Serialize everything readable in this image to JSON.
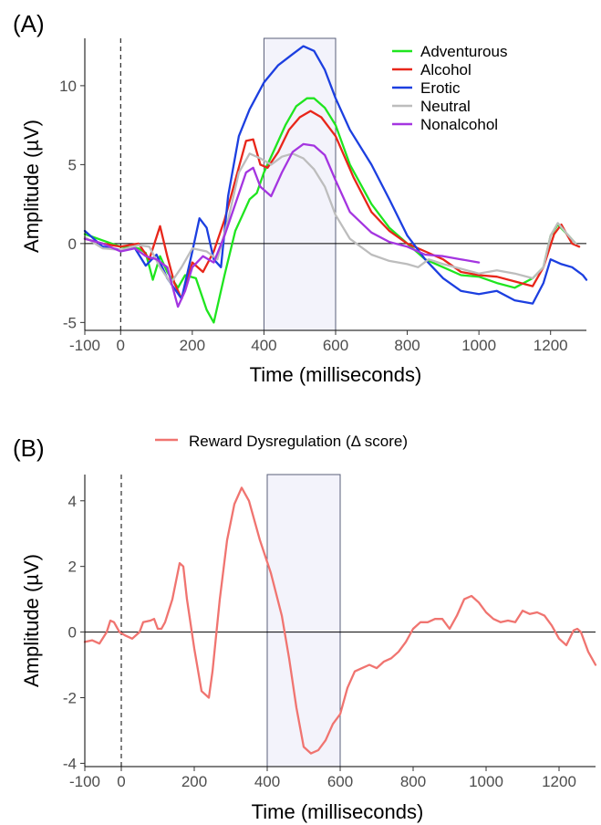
{
  "chart_data": [
    {
      "panel_label": "(A)",
      "type": "line",
      "xlabel": "Time (milliseconds)",
      "ylabel": "Amplitude (µV)",
      "xlim": [
        -100,
        1300
      ],
      "ylim": [
        -5.5,
        13
      ],
      "xticks": [
        -100,
        0,
        200,
        400,
        600,
        800,
        1000,
        1200
      ],
      "yticks": [
        -5,
        0,
        5,
        10
      ],
      "zero_line": true,
      "stimulus_onset_dashed": 0,
      "shaded_window": [
        400,
        600
      ],
      "legend_position": "top-right",
      "series": [
        {
          "name": "Adventurous",
          "color": "#1fe51f",
          "points": [
            [
              -100,
              0.6
            ],
            [
              -50,
              0.2
            ],
            [
              0,
              -0.2
            ],
            [
              50,
              -0.3
            ],
            [
              70,
              -0.6
            ],
            [
              90,
              -2.3
            ],
            [
              110,
              -0.8
            ],
            [
              130,
              -1.8
            ],
            [
              160,
              -2.8
            ],
            [
              180,
              -2.0
            ],
            [
              210,
              -2.2
            ],
            [
              240,
              -4.2
            ],
            [
              260,
              -5.0
            ],
            [
              290,
              -2.0
            ],
            [
              320,
              0.8
            ],
            [
              340,
              1.8
            ],
            [
              360,
              2.8
            ],
            [
              380,
              3.2
            ],
            [
              400,
              4.5
            ],
            [
              430,
              6.0
            ],
            [
              460,
              7.5
            ],
            [
              490,
              8.7
            ],
            [
              520,
              9.2
            ],
            [
              540,
              9.2
            ],
            [
              570,
              8.6
            ],
            [
              600,
              7.5
            ],
            [
              640,
              5.0
            ],
            [
              700,
              2.5
            ],
            [
              750,
              1.0
            ],
            [
              800,
              0.0
            ],
            [
              850,
              -1.0
            ],
            [
              900,
              -1.5
            ],
            [
              950,
              -2.0
            ],
            [
              1000,
              -2.1
            ],
            [
              1050,
              -2.5
            ],
            [
              1100,
              -2.8
            ],
            [
              1150,
              -2.2
            ],
            [
              1180,
              -1.5
            ],
            [
              1200,
              0.5
            ],
            [
              1220,
              1.2
            ],
            [
              1250,
              0.5
            ],
            [
              1270,
              0.0
            ]
          ]
        },
        {
          "name": "Alcohol",
          "color": "#e8261a",
          "points": [
            [
              -100,
              0.3
            ],
            [
              -50,
              0.0
            ],
            [
              0,
              -0.2
            ],
            [
              50,
              0.0
            ],
            [
              80,
              -1.0
            ],
            [
              110,
              1.1
            ],
            [
              130,
              -0.8
            ],
            [
              150,
              -2.5
            ],
            [
              170,
              -3.5
            ],
            [
              200,
              -1.2
            ],
            [
              230,
              -1.8
            ],
            [
              260,
              -0.5
            ],
            [
              290,
              1.5
            ],
            [
              320,
              4.0
            ],
            [
              350,
              6.5
            ],
            [
              370,
              6.6
            ],
            [
              390,
              5.0
            ],
            [
              410,
              4.8
            ],
            [
              440,
              5.8
            ],
            [
              470,
              7.2
            ],
            [
              500,
              8.0
            ],
            [
              530,
              8.4
            ],
            [
              560,
              8.0
            ],
            [
              600,
              6.8
            ],
            [
              650,
              4.2
            ],
            [
              700,
              2.0
            ],
            [
              750,
              0.8
            ],
            [
              800,
              0.0
            ],
            [
              850,
              -0.5
            ],
            [
              900,
              -1.0
            ],
            [
              950,
              -1.8
            ],
            [
              1000,
              -2.0
            ],
            [
              1050,
              -2.1
            ],
            [
              1100,
              -2.4
            ],
            [
              1150,
              -2.7
            ],
            [
              1180,
              -1.5
            ],
            [
              1210,
              0.6
            ],
            [
              1230,
              1.2
            ],
            [
              1260,
              0.0
            ],
            [
              1280,
              -0.2
            ]
          ]
        },
        {
          "name": "Erotic",
          "color": "#1c3fe0",
          "points": [
            [
              -100,
              0.8
            ],
            [
              -50,
              -0.2
            ],
            [
              0,
              -0.4
            ],
            [
              40,
              -0.3
            ],
            [
              70,
              -1.4
            ],
            [
              100,
              -0.7
            ],
            [
              130,
              -2.2
            ],
            [
              170,
              -3.5
            ],
            [
              200,
              -0.5
            ],
            [
              220,
              1.6
            ],
            [
              240,
              1.0
            ],
            [
              260,
              -1.0
            ],
            [
              280,
              -1.5
            ],
            [
              300,
              3.0
            ],
            [
              330,
              6.8
            ],
            [
              360,
              8.5
            ],
            [
              400,
              10.2
            ],
            [
              440,
              11.3
            ],
            [
              480,
              12.0
            ],
            [
              510,
              12.5
            ],
            [
              540,
              12.2
            ],
            [
              570,
              11.0
            ],
            [
              600,
              9.2
            ],
            [
              640,
              7.2
            ],
            [
              700,
              5.0
            ],
            [
              750,
              2.8
            ],
            [
              800,
              0.5
            ],
            [
              850,
              -1.0
            ],
            [
              900,
              -2.2
            ],
            [
              950,
              -3.0
            ],
            [
              1000,
              -3.2
            ],
            [
              1050,
              -3.0
            ],
            [
              1100,
              -3.6
            ],
            [
              1150,
              -3.8
            ],
            [
              1180,
              -2.5
            ],
            [
              1200,
              -1.0
            ],
            [
              1230,
              -1.3
            ],
            [
              1260,
              -1.5
            ],
            [
              1290,
              -2.0
            ],
            [
              1300,
              -2.3
            ]
          ]
        },
        {
          "name": "Neutral",
          "color": "#bdbdbd",
          "points": [
            [
              -100,
              0.4
            ],
            [
              -50,
              -0.3
            ],
            [
              0,
              -0.4
            ],
            [
              50,
              -0.1
            ],
            [
              80,
              -0.2
            ],
            [
              110,
              -1.5
            ],
            [
              140,
              -2.5
            ],
            [
              170,
              -1.5
            ],
            [
              200,
              -0.3
            ],
            [
              240,
              -0.5
            ],
            [
              270,
              -1.0
            ],
            [
              300,
              1.5
            ],
            [
              330,
              4.5
            ],
            [
              360,
              5.7
            ],
            [
              390,
              5.4
            ],
            [
              420,
              5.0
            ],
            [
              450,
              5.5
            ],
            [
              480,
              5.7
            ],
            [
              510,
              5.4
            ],
            [
              540,
              4.7
            ],
            [
              570,
              3.6
            ],
            [
              600,
              1.8
            ],
            [
              640,
              0.3
            ],
            [
              700,
              -0.7
            ],
            [
              750,
              -1.1
            ],
            [
              800,
              -1.3
            ],
            [
              830,
              -1.5
            ],
            [
              860,
              -1.0
            ],
            [
              900,
              -1.3
            ],
            [
              950,
              -1.6
            ],
            [
              1000,
              -1.9
            ],
            [
              1050,
              -1.7
            ],
            [
              1100,
              -1.9
            ],
            [
              1150,
              -2.2
            ],
            [
              1180,
              -1.5
            ],
            [
              1200,
              0.5
            ],
            [
              1220,
              1.3
            ],
            [
              1250,
              0.5
            ],
            [
              1270,
              0.0
            ]
          ]
        },
        {
          "name": "Nonalcohol",
          "color": "#a435e0",
          "points": [
            [
              -100,
              0.3
            ],
            [
              -50,
              0.0
            ],
            [
              0,
              -0.5
            ],
            [
              40,
              -0.3
            ],
            [
              70,
              -0.8
            ],
            [
              100,
              -1.0
            ],
            [
              130,
              -1.5
            ],
            [
              160,
              -4.0
            ],
            [
              180,
              -3.0
            ],
            [
              200,
              -1.5
            ],
            [
              230,
              -0.8
            ],
            [
              260,
              -1.2
            ],
            [
              290,
              0.5
            ],
            [
              320,
              2.5
            ],
            [
              350,
              4.5
            ],
            [
              370,
              4.8
            ],
            [
              390,
              3.6
            ],
            [
              420,
              3.0
            ],
            [
              450,
              4.5
            ],
            [
              480,
              5.8
            ],
            [
              510,
              6.3
            ],
            [
              540,
              6.2
            ],
            [
              570,
              5.6
            ],
            [
              600,
              4.0
            ],
            [
              640,
              2.0
            ],
            [
              700,
              0.7
            ],
            [
              750,
              0.1
            ],
            [
              800,
              -0.2
            ],
            [
              850,
              -0.7
            ],
            [
              900,
              -0.8
            ],
            [
              950,
              -1.0
            ],
            [
              1000,
              -1.2
            ]
          ]
        }
      ]
    },
    {
      "panel_label": "(B)",
      "type": "line",
      "xlabel": "Time (milliseconds)",
      "ylabel": "Amplitude (µV)",
      "xlim": [
        -100,
        1300
      ],
      "ylim": [
        -4.1,
        4.8
      ],
      "xticks": [
        -100,
        0,
        200,
        400,
        600,
        800,
        1000,
        1200
      ],
      "yticks": [
        -4,
        -2,
        0,
        2,
        4
      ],
      "zero_line": true,
      "stimulus_onset_dashed": 0,
      "shaded_window": [
        400,
        600
      ],
      "legend_position": "top",
      "series": [
        {
          "name": "Reward Dysregulation (Δ score)",
          "color": "#f07470",
          "points": [
            [
              -100,
              -0.3
            ],
            [
              -80,
              -0.25
            ],
            [
              -60,
              -0.35
            ],
            [
              -40,
              0.0
            ],
            [
              -30,
              0.35
            ],
            [
              -20,
              0.3
            ],
            [
              -5,
              0.0
            ],
            [
              10,
              -0.1
            ],
            [
              30,
              -0.2
            ],
            [
              50,
              0.0
            ],
            [
              60,
              0.3
            ],
            [
              80,
              0.35
            ],
            [
              90,
              0.4
            ],
            [
              100,
              0.1
            ],
            [
              110,
              0.1
            ],
            [
              120,
              0.3
            ],
            [
              140,
              1.0
            ],
            [
              160,
              2.1
            ],
            [
              170,
              2.0
            ],
            [
              180,
              1.0
            ],
            [
              200,
              -0.5
            ],
            [
              220,
              -1.8
            ],
            [
              240,
              -2.0
            ],
            [
              250,
              -1.2
            ],
            [
              270,
              1.0
            ],
            [
              290,
              2.8
            ],
            [
              310,
              3.9
            ],
            [
              330,
              4.4
            ],
            [
              350,
              4.0
            ],
            [
              380,
              2.8
            ],
            [
              410,
              1.8
            ],
            [
              440,
              0.5
            ],
            [
              460,
              -0.8
            ],
            [
              480,
              -2.3
            ],
            [
              500,
              -3.5
            ],
            [
              520,
              -3.7
            ],
            [
              540,
              -3.6
            ],
            [
              560,
              -3.3
            ],
            [
              580,
              -2.8
            ],
            [
              600,
              -2.5
            ],
            [
              620,
              -1.7
            ],
            [
              640,
              -1.2
            ],
            [
              660,
              -1.1
            ],
            [
              680,
              -1.0
            ],
            [
              700,
              -1.1
            ],
            [
              720,
              -0.9
            ],
            [
              740,
              -0.8
            ],
            [
              760,
              -0.6
            ],
            [
              780,
              -0.3
            ],
            [
              800,
              0.1
            ],
            [
              820,
              0.3
            ],
            [
              840,
              0.3
            ],
            [
              860,
              0.4
            ],
            [
              880,
              0.4
            ],
            [
              900,
              0.1
            ],
            [
              920,
              0.5
            ],
            [
              940,
              1.0
            ],
            [
              960,
              1.1
            ],
            [
              980,
              0.9
            ],
            [
              1000,
              0.6
            ],
            [
              1020,
              0.4
            ],
            [
              1040,
              0.3
            ],
            [
              1060,
              0.35
            ],
            [
              1080,
              0.3
            ],
            [
              1100,
              0.65
            ],
            [
              1120,
              0.55
            ],
            [
              1140,
              0.6
            ],
            [
              1160,
              0.5
            ],
            [
              1180,
              0.2
            ],
            [
              1200,
              -0.2
            ],
            [
              1220,
              -0.4
            ],
            [
              1240,
              0.05
            ],
            [
              1250,
              0.1
            ],
            [
              1260,
              0.0
            ],
            [
              1280,
              -0.6
            ],
            [
              1300,
              -1.0
            ]
          ]
        }
      ]
    }
  ]
}
